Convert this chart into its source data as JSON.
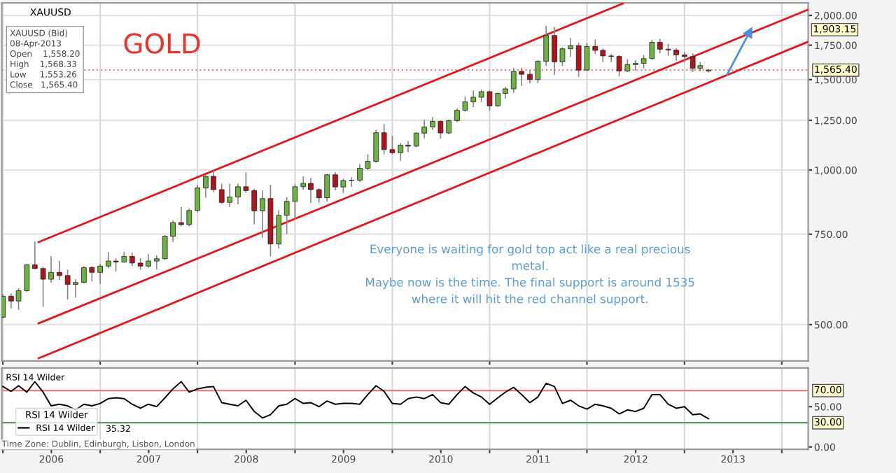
{
  "chart_data": [
    {
      "type": "candlestick",
      "title": "GOLD",
      "log": true,
      "grid": true,
      "tick_labels": "y",
      "x": [
        "2006-01",
        "2006-02",
        "2006-03",
        "2006-04",
        "2006-05",
        "2006-06",
        "2006-07",
        "2006-08",
        "2006-09",
        "2006-10",
        "2006-11",
        "2006-12",
        "2007-01",
        "2007-02",
        "2007-03",
        "2007-04",
        "2007-05",
        "2007-06",
        "2007-07",
        "2007-08",
        "2007-09",
        "2007-10",
        "2007-11",
        "2007-12",
        "2008-01",
        "2008-02",
        "2008-03",
        "2008-04",
        "2008-05",
        "2008-06",
        "2008-07",
        "2008-08",
        "2008-09",
        "2008-10",
        "2008-11",
        "2008-12",
        "2009-01",
        "2009-02",
        "2009-03",
        "2009-04",
        "2009-05",
        "2009-06",
        "2009-07",
        "2009-08",
        "2009-09",
        "2009-10",
        "2009-11",
        "2009-12",
        "2010-01",
        "2010-02",
        "2010-03",
        "2010-04",
        "2010-05",
        "2010-06",
        "2010-07",
        "2010-08",
        "2010-09",
        "2010-10",
        "2010-11",
        "2010-12",
        "2011-01",
        "2011-02",
        "2011-03",
        "2011-04",
        "2011-05",
        "2011-06",
        "2011-07",
        "2011-08",
        "2011-09",
        "2011-10",
        "2011-11",
        "2011-12",
        "2012-01",
        "2012-02",
        "2012-03",
        "2012-04",
        "2012-05",
        "2012-06",
        "2012-07",
        "2012-08",
        "2012-09",
        "2012-10",
        "2012-11",
        "2012-12",
        "2013-01",
        "2013-02",
        "2013-03",
        "2013-04"
      ],
      "ohlc": [
        [
          517,
          572,
          516,
          568
        ],
        [
          568,
          574,
          539,
          556
        ],
        [
          556,
          587,
          536,
          582
        ],
        [
          582,
          654,
          581,
          654
        ],
        [
          654,
          724,
          642,
          643
        ],
        [
          643,
          646,
          543,
          613
        ],
        [
          613,
          678,
          605,
          632
        ],
        [
          632,
          664,
          612,
          623
        ],
        [
          623,
          638,
          561,
          599
        ],
        [
          599,
          611,
          566,
          604
        ],
        [
          604,
          648,
          603,
          646
        ],
        [
          646,
          648,
          609,
          632
        ],
        [
          632,
          655,
          602,
          650
        ],
        [
          650,
          690,
          646,
          665
        ],
        [
          665,
          671,
          636,
          662
        ],
        [
          662,
          692,
          661,
          679
        ],
        [
          679,
          688,
          652,
          659
        ],
        [
          659,
          672,
          641,
          650
        ],
        [
          650,
          684,
          647,
          665
        ],
        [
          665,
          680,
          642,
          672
        ],
        [
          672,
          745,
          670,
          743
        ],
        [
          743,
          795,
          726,
          790
        ],
        [
          790,
          845,
          780,
          783
        ],
        [
          783,
          839,
          779,
          834
        ],
        [
          834,
          932,
          830,
          923
        ],
        [
          923,
          975,
          886,
          972
        ],
        [
          972,
          997,
          908,
          916
        ],
        [
          916,
          938,
          861,
          865
        ],
        [
          865,
          937,
          850,
          886
        ],
        [
          886,
          938,
          860,
          928
        ],
        [
          928,
          987,
          905,
          912
        ],
        [
          912,
          917,
          786,
          833
        ],
        [
          833,
          911,
          740,
          880
        ],
        [
          880,
          934,
          681,
          718
        ],
        [
          718,
          833,
          705,
          816
        ],
        [
          816,
          883,
          752,
          869
        ],
        [
          869,
          936,
          802,
          928
        ],
        [
          928,
          970,
          918,
          942
        ],
        [
          942,
          962,
          865,
          916
        ],
        [
          916,
          920,
          866,
          883
        ],
        [
          883,
          980,
          870,
          979
        ],
        [
          979,
          989,
          915,
          927
        ],
        [
          927,
          960,
          905,
          954
        ],
        [
          954,
          966,
          930,
          955
        ],
        [
          955,
          1025,
          950,
          1008
        ],
        [
          1008,
          1070,
          1003,
          1040
        ],
        [
          1040,
          1195,
          1036,
          1182
        ],
        [
          1182,
          1226,
          1075,
          1096
        ],
        [
          1096,
          1162,
          1075,
          1081
        ],
        [
          1081,
          1126,
          1045,
          1118
        ],
        [
          1118,
          1136,
          1086,
          1113
        ],
        [
          1113,
          1180,
          1110,
          1180
        ],
        [
          1180,
          1249,
          1156,
          1213
        ],
        [
          1213,
          1265,
          1200,
          1244
        ],
        [
          1244,
          1245,
          1155,
          1181
        ],
        [
          1181,
          1250,
          1177,
          1248
        ],
        [
          1248,
          1316,
          1243,
          1307
        ],
        [
          1307,
          1388,
          1303,
          1357
        ],
        [
          1357,
          1424,
          1330,
          1386
        ],
        [
          1386,
          1432,
          1360,
          1421
        ],
        [
          1421,
          1424,
          1309,
          1333
        ],
        [
          1333,
          1411,
          1330,
          1410
        ],
        [
          1410,
          1448,
          1381,
          1439
        ],
        [
          1439,
          1575,
          1417,
          1556
        ],
        [
          1556,
          1577,
          1462,
          1536
        ],
        [
          1536,
          1560,
          1478,
          1500
        ],
        [
          1500,
          1632,
          1480,
          1628
        ],
        [
          1628,
          1903.15,
          1600,
          1828
        ],
        [
          1828,
          1895,
          1535,
          1624
        ],
        [
          1624,
          1728,
          1600,
          1722
        ],
        [
          1722,
          1803,
          1667,
          1746
        ],
        [
          1746,
          1764,
          1523,
          1565
        ],
        [
          1565,
          1763,
          1563,
          1740
        ],
        [
          1740,
          1791,
          1688,
          1710
        ],
        [
          1710,
          1720,
          1627,
          1668
        ],
        [
          1668,
          1678,
          1627,
          1664
        ],
        [
          1664,
          1670,
          1527,
          1559
        ],
        [
          1559,
          1640,
          1555,
          1604
        ],
        [
          1604,
          1632,
          1565,
          1614
        ],
        [
          1614,
          1671,
          1583,
          1648
        ],
        [
          1648,
          1788,
          1643,
          1773
        ],
        [
          1773,
          1796,
          1693,
          1719
        ],
        [
          1719,
          1755,
          1673,
          1712
        ],
        [
          1712,
          1723,
          1636,
          1675
        ],
        [
          1675,
          1694,
          1626,
          1663
        ],
        [
          1663,
          1683,
          1555,
          1578
        ],
        [
          1578,
          1617,
          1562,
          1597
        ],
        [
          1558.2,
          1568.33,
          1553.26,
          1565.4
        ]
      ],
      "series": [
        {
          "type": "line",
          "color": "#e3171b",
          "x": [
            "2006-05-15",
            "2012-05-15"
          ],
          "values": [
            724,
            2110
          ]
        },
        {
          "type": "line",
          "color": "#e3171b",
          "x": [
            "2006-05-15",
            "2014-04-08"
          ],
          "values": [
            503,
            2051
          ]
        },
        {
          "type": "line",
          "color": "#e3171b",
          "x": [
            "2006-05-15",
            "2014-04-08"
          ],
          "values": [
            430,
            1776
          ]
        },
        {
          "type": "line",
          "color": "#4a90e2",
          "marker": "triangle",
          "x": [
            "2013-06-10",
            "2013-09-02"
          ],
          "values": [
            1535,
            1856
          ]
        }
      ],
      "xlim": [
        "2005-12-28",
        "2014-04-10"
      ],
      "xticks": [
        {
          "value": "2006-01-01",
          "label": null
        },
        {
          "value": "2007-01-01",
          "label": null
        },
        {
          "value": "2008-01-01",
          "label": null
        },
        {
          "value": "2009-01-01",
          "label": null
        },
        {
          "value": "2010-01-01",
          "label": null
        },
        {
          "value": "2011-01-01",
          "label": null
        },
        {
          "value": "2012-01-01",
          "label": null
        },
        {
          "value": "2013-01-01",
          "label": null
        },
        {
          "value": "2014-01-01",
          "label": null
        }
      ],
      "ylim": [
        425,
        2116
      ],
      "yticks": [
        {
          "value": 500,
          "label": "500.00"
        },
        {
          "value": 750,
          "label": "750.00"
        },
        {
          "value": 1000,
          "label": "1,000.00"
        },
        {
          "value": 1250,
          "label": "1,250.00"
        },
        {
          "value": 1500,
          "label": "1,500.00"
        },
        {
          "value": 1750,
          "label": "1,750.00"
        },
        {
          "value": 2000,
          "label": "2,000.00"
        }
      ],
      "ref_lines": [
        {
          "axis": "y",
          "value": 1565.4,
          "label": "1,565.40",
          "color": "#f08080",
          "line_style": "dotted"
        }
      ],
      "annotations": [
        "XAUUSD",
        "XAUUSD (Bid)\n08-Apr-2013\nOpen    1,558.20\nHigh    1,568.33\nLow     1,553.26\nClose   1,565.40",
        "Everyone is waiting for gold top act like a real precious\nmetal.\nMaybe now is the time. The final support is around 1535\nwhere it will hit the red channel support.",
        "1,903.15"
      ]
    },
    {
      "type": "line",
      "grid": "x",
      "legend": "bottom left",
      "legend_title": "RSI 14 Wilder",
      "series": [
        {
          "name": "RSI 14 Wilder",
          "color": "#000000",
          "x": [
            "2006-01",
            "2006-02",
            "2006-03",
            "2006-04",
            "2006-05",
            "2006-06",
            "2006-07",
            "2006-08",
            "2006-09",
            "2006-10",
            "2006-11",
            "2006-12",
            "2007-01",
            "2007-02",
            "2007-03",
            "2007-04",
            "2007-05",
            "2007-06",
            "2007-07",
            "2007-08",
            "2007-09",
            "2007-10",
            "2007-11",
            "2007-12",
            "2008-01",
            "2008-02",
            "2008-03",
            "2008-04",
            "2008-05",
            "2008-06",
            "2008-07",
            "2008-08",
            "2008-09",
            "2008-10",
            "2008-11",
            "2008-12",
            "2009-01",
            "2009-02",
            "2009-03",
            "2009-04",
            "2009-05",
            "2009-06",
            "2009-07",
            "2009-08",
            "2009-09",
            "2009-10",
            "2009-11",
            "2009-12",
            "2010-01",
            "2010-02",
            "2010-03",
            "2010-04",
            "2010-05",
            "2010-06",
            "2010-07",
            "2010-08",
            "2010-09",
            "2010-10",
            "2010-11",
            "2010-12",
            "2011-01",
            "2011-02",
            "2011-03",
            "2011-04",
            "2011-05",
            "2011-06",
            "2011-07",
            "2011-08",
            "2011-09",
            "2011-10",
            "2011-11",
            "2011-12",
            "2012-01",
            "2012-02",
            "2012-03",
            "2012-04",
            "2012-05",
            "2012-06",
            "2012-07",
            "2012-08",
            "2012-09",
            "2012-10",
            "2012-11",
            "2012-12",
            "2013-01",
            "2013-02",
            "2013-03",
            "2013-04"
          ],
          "values": [
            75,
            69,
            76,
            68,
            81,
            68,
            51,
            53,
            51,
            46,
            53,
            51,
            54,
            60,
            61,
            60,
            53,
            48,
            53,
            50,
            61,
            72,
            81,
            68,
            72,
            74,
            75,
            55,
            53,
            51,
            58,
            44,
            36,
            40,
            51,
            53,
            60,
            54,
            55,
            50,
            57,
            53,
            54,
            54,
            53,
            65,
            76,
            69,
            54,
            53,
            60,
            62,
            60,
            65,
            55,
            53,
            65,
            75,
            67,
            62,
            53,
            61,
            68,
            74,
            65,
            55,
            62,
            79,
            75,
            54,
            58,
            51,
            47,
            53,
            51,
            48,
            41,
            46,
            44,
            48,
            65,
            65,
            53,
            48,
            50,
            40,
            41,
            35
          ]
        }
      ],
      "xlim": [
        "2005-12-28",
        "2014-04-10"
      ],
      "xticks": [
        {
          "value": "2006-01-01",
          "label": null
        },
        {
          "value": "2007-01-01",
          "label": null
        },
        {
          "value": "2008-01-01",
          "label": null
        },
        {
          "value": "2009-01-01",
          "label": null
        },
        {
          "value": "2010-01-01",
          "label": null
        },
        {
          "value": "2011-01-01",
          "label": null
        },
        {
          "value": "2012-01-01",
          "label": null
        },
        {
          "value": "2013-01-01",
          "label": null
        },
        {
          "value": "2014-01-01",
          "label": null
        },
        {
          "value": "2006-07-02",
          "label": "2006"
        },
        {
          "value": "2007-07-02",
          "label": "2007"
        },
        {
          "value": "2008-07-02",
          "label": "2008"
        },
        {
          "value": "2009-07-02",
          "label": "2009"
        },
        {
          "value": "2010-07-02",
          "label": "2010"
        },
        {
          "value": "2011-07-02",
          "label": "2011"
        },
        {
          "value": "2012-07-02",
          "label": "2012"
        },
        {
          "value": "2013-07-02",
          "label": "2013"
        }
      ],
      "ylim": [
        -3,
        98
      ],
      "yticks": [
        {
          "value": 0,
          "label": "0.00"
        },
        {
          "value": 50,
          "label": "50.00"
        }
      ],
      "ref_lines": [
        {
          "axis": "y",
          "value": 70,
          "label": "70.00",
          "color": "#f08080",
          "line_style": "solid"
        },
        {
          "axis": "y",
          "value": 30,
          "label": "30.00",
          "color": "#5a9a5a",
          "line_style": "solid"
        }
      ],
      "annotations": [
        "RSI 14 Wilder",
        "35.32",
        "Time Zone: Dublin, Edinburgh, Lisbon, London"
      ]
    }
  ]
}
